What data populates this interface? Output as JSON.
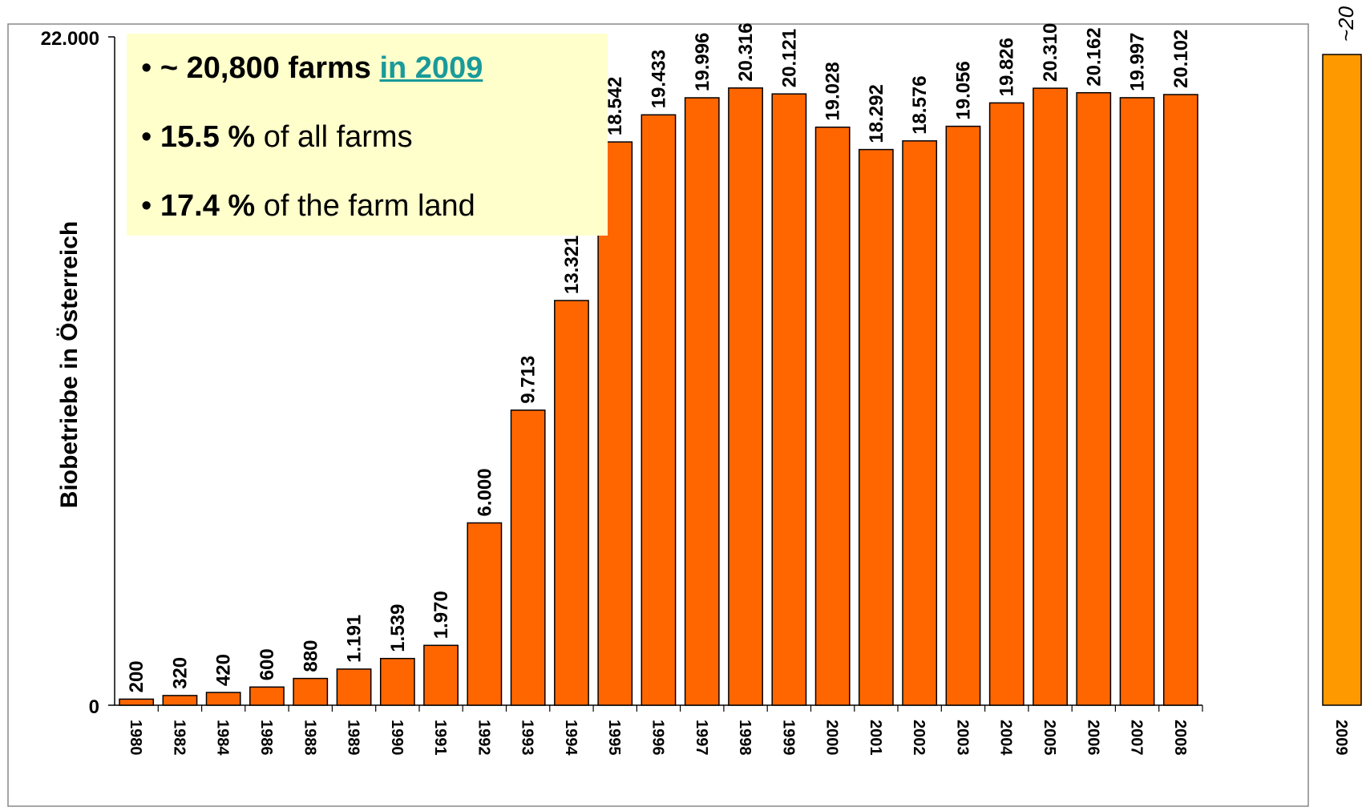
{
  "colors": {
    "bar": "#ff6600",
    "bar_2009": "#ff9900",
    "panel": "#ffffcc",
    "link": "#1a9a9a"
  },
  "chart_data": {
    "type": "bar",
    "ylabel": "Biobetriebe in Österreich",
    "ylim": [
      0,
      22000
    ],
    "y_tick_labels": [
      "0",
      "22.000"
    ],
    "categories": [
      "1980",
      "1982",
      "1984",
      "1986",
      "1988",
      "1989",
      "1990",
      "1991",
      "1992",
      "1993",
      "1994",
      "1995",
      "1996",
      "1997",
      "1998",
      "1999",
      "2000",
      "2001",
      "2002",
      "2003",
      "2004",
      "2005",
      "2006",
      "2007",
      "2008"
    ],
    "values": [
      200,
      320,
      420,
      600,
      880,
      1191,
      1539,
      1970,
      6000,
      9713,
      13321,
      18542,
      19433,
      19996,
      20316,
      20121,
      19028,
      18292,
      18576,
      19056,
      19826,
      20310,
      20162,
      19997,
      20102
    ],
    "value_labels": [
      "200",
      "320",
      "420",
      "600",
      "880",
      "1.191",
      "1.539",
      "1.970",
      "6.000",
      "9.713",
      "13.321",
      "18.542",
      "19.433",
      "19.996",
      "20.316",
      "20.121",
      "19.028",
      "18.292",
      "18.576",
      "19.056",
      "19.826",
      "20.310",
      "20.162",
      "19.997",
      "20.102"
    ],
    "extra_bar": {
      "category": "2009",
      "value": 20800,
      "label": "~20"
    }
  },
  "info_box": {
    "line1_prefix": "~ 20,800 farms",
    "line1_link": "in 2009",
    "line2_bold": "15.5 %",
    "line2_rest": "of all farms",
    "line3_bold": "17.4 %",
    "line3_rest": "of the farm land"
  }
}
